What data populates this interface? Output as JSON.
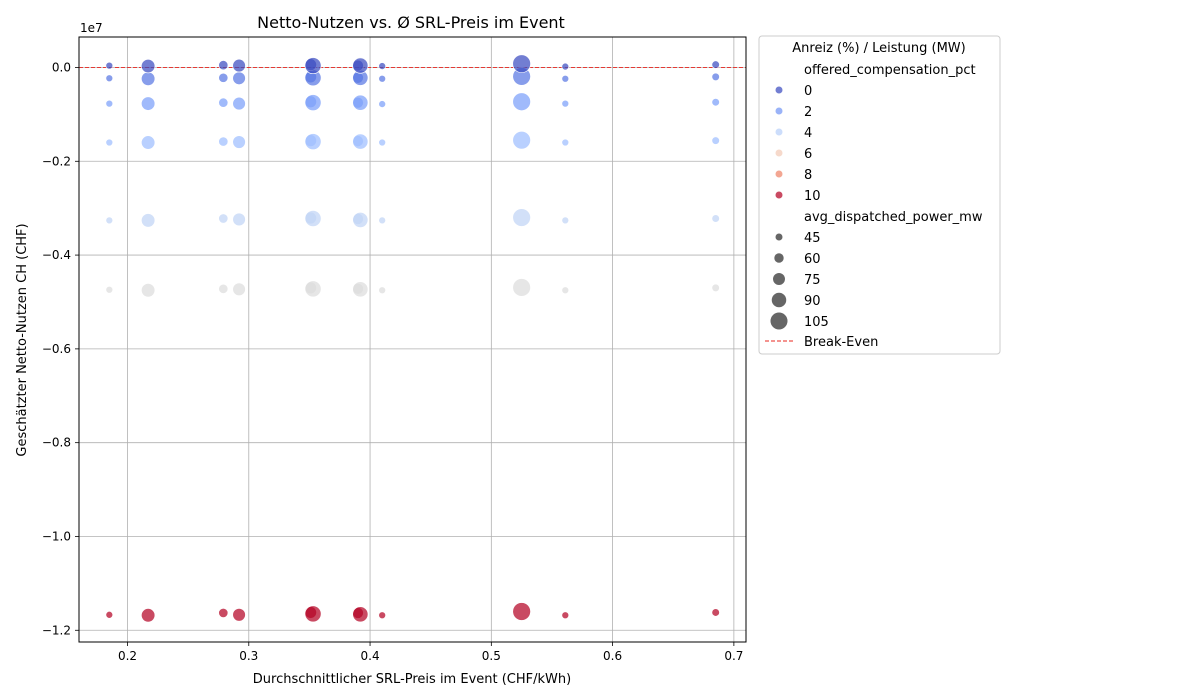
{
  "chart_data": {
    "type": "scatter",
    "title": "Netto-Nutzen vs. Ø SRL-Preis im Event",
    "xlabel": "Durchschnittlicher SRL-Preis im Event (CHF/kWh)",
    "ylabel": "Geschätzter Netto-Nutzen CH (CHF)",
    "y_offset_label": "1e7",
    "xlim": [
      0.16,
      0.71
    ],
    "ylim": [
      -1.225,
      0.065
    ],
    "x_ticks": [
      0.2,
      0.3,
      0.4,
      0.5,
      0.6,
      0.7
    ],
    "x_tick_labels": [
      "0.2",
      "0.3",
      "0.4",
      "0.5",
      "0.6",
      "0.7"
    ],
    "y_ticks": [
      0.0,
      -0.2,
      -0.4,
      -0.6,
      -0.8,
      -1.0,
      -1.2
    ],
    "y_tick_labels": [
      "0.0",
      "−0.2",
      "−0.4",
      "−0.6",
      "−0.8",
      "−1.0",
      "−1.2"
    ],
    "grid": true,
    "legend_placement": "outside-right",
    "break_even": {
      "y": 0,
      "label": "Break-Even",
      "color": "#e8271f"
    },
    "legend": {
      "title": "Anreiz (%) / Leistung (MW)",
      "hue_title": "offered_compensation_pct",
      "hue_items": [
        {
          "label": "0",
          "color": "#3b4cc0"
        },
        {
          "label": "2",
          "color": "#7396f5"
        },
        {
          "label": "4",
          "color": "#b9d0f9"
        },
        {
          "label": "6",
          "color": "#f2cbb7"
        },
        {
          "label": "8",
          "color": "#ee8468"
        },
        {
          "label": "10",
          "color": "#b40426"
        }
      ],
      "size_title": "avg_dispatched_power_mw",
      "size_items": [
        {
          "label": "45",
          "power": 45
        },
        {
          "label": "60",
          "power": 60
        },
        {
          "label": "75",
          "power": 75
        },
        {
          "label": "90",
          "power": 90
        },
        {
          "label": "105",
          "power": 105
        }
      ]
    },
    "compensation_levels": [
      {
        "pct": 0,
        "color": "#3b4cc0"
      },
      {
        "pct": 1,
        "color": "#5977e3"
      },
      {
        "pct": 2,
        "color": "#7b9ff9"
      },
      {
        "pct": 3,
        "color": "#9ebeff"
      },
      {
        "pct": 4,
        "color": "#c0d4f5"
      },
      {
        "pct": 5,
        "color": "#dddcdc"
      },
      {
        "pct": 10,
        "color": "#b40426"
      }
    ],
    "series_x": [
      0.185,
      0.217,
      0.279,
      0.292,
      0.351,
      0.353,
      0.39,
      0.392,
      0.41,
      0.525,
      0.561,
      0.685
    ],
    "series_power": [
      45,
      85,
      60,
      80,
      75,
      100,
      70,
      95,
      40,
      110,
      40,
      50
    ],
    "net_benefit_1e7": [
      [
        0.004,
        0.003,
        0.005,
        0.004,
        0.006,
        0.004,
        0.004,
        0.004,
        0.003,
        0.008,
        0.002,
        0.006
      ],
      [
        -0.023,
        -0.024,
        -0.022,
        -0.023,
        -0.02,
        -0.022,
        -0.022,
        -0.022,
        -0.024,
        -0.019,
        -0.024,
        -0.02
      ],
      [
        -0.077,
        -0.077,
        -0.075,
        -0.077,
        -0.073,
        -0.075,
        -0.075,
        -0.075,
        -0.078,
        -0.073,
        -0.077,
        -0.074
      ],
      [
        -0.16,
        -0.16,
        -0.158,
        -0.159,
        -0.156,
        -0.158,
        -0.157,
        -0.158,
        -0.16,
        -0.155,
        -0.16,
        -0.156
      ],
      [
        -0.326,
        -0.326,
        -0.322,
        -0.324,
        -0.321,
        -0.322,
        -0.323,
        -0.325,
        -0.326,
        -0.32,
        -0.326,
        -0.322
      ],
      [
        -0.474,
        -0.475,
        -0.472,
        -0.473,
        -0.47,
        -0.472,
        -0.472,
        -0.473,
        -0.475,
        -0.469,
        -0.475,
        -0.47
      ],
      [
        -1.167,
        -1.168,
        -1.163,
        -1.167,
        -1.162,
        -1.165,
        -1.163,
        -1.166,
        -1.168,
        -1.16,
        -1.168,
        -1.162
      ]
    ]
  }
}
